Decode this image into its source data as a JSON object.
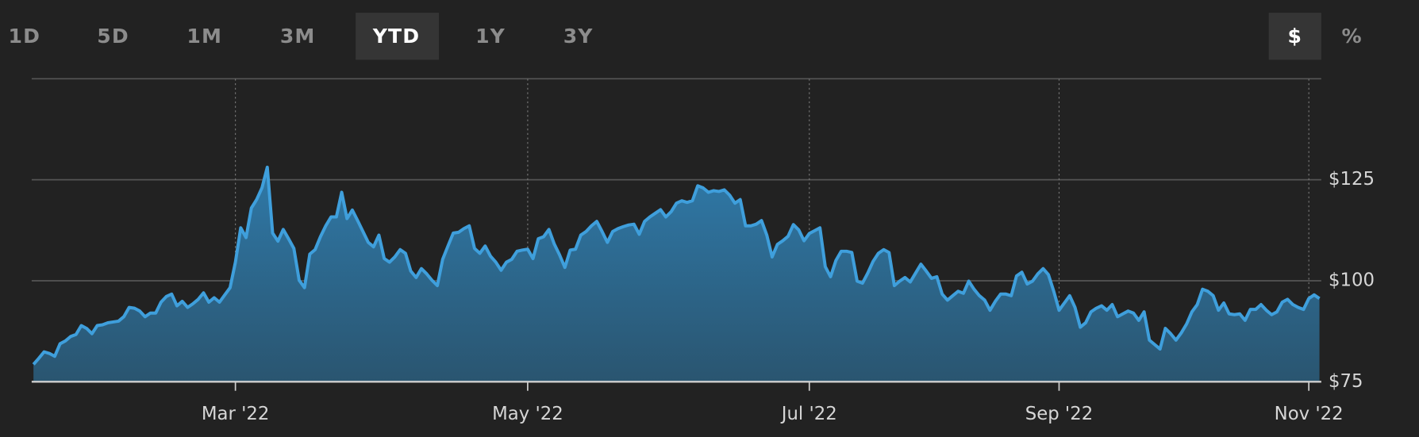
{
  "controls": {
    "ranges": [
      "1D",
      "5D",
      "1M",
      "3M",
      "YTD",
      "1Y",
      "3Y"
    ],
    "units": [
      "$",
      "%"
    ]
  },
  "chart_data": {
    "type": "area",
    "color": "#3f9fdc",
    "values": [
      79.3,
      80.8,
      82.4,
      82,
      81.3,
      84.4,
      85.1,
      86.2,
      86.7,
      88.9,
      88.2,
      86.9,
      88.9,
      89.1,
      89.6,
      89.8,
      90,
      91.1,
      93.4,
      93.2,
      92.5,
      91.1,
      92,
      92,
      94.7,
      96.1,
      96.7,
      93.8,
      94.9,
      93.4,
      94.3,
      95.4,
      97,
      94.7,
      95.8,
      94.7,
      96.5,
      98.3,
      104.6,
      113.1,
      110.7,
      118,
      120.1,
      123,
      128.1,
      111.8,
      109.8,
      112.7,
      110.4,
      108,
      100.1,
      98.3,
      106.6,
      107.7,
      110.9,
      113.6,
      115.8,
      115.8,
      121.9,
      115.4,
      117.5,
      114.9,
      112.2,
      109.5,
      108.4,
      111.3,
      105.5,
      104.6,
      105.9,
      107.7,
      106.8,
      102.4,
      100.8,
      103,
      101.7,
      100.1,
      98.8,
      105.3,
      108.6,
      111.8,
      112,
      112.9,
      113.6,
      108,
      106.8,
      108.6,
      106.1,
      104.6,
      102.6,
      104.6,
      105.3,
      107.3,
      107.6,
      107.8,
      105.5,
      110.4,
      110.9,
      112.7,
      109.1,
      106.4,
      103.3,
      107.6,
      107.8,
      111.3,
      112.2,
      113.6,
      114.7,
      112.2,
      109.5,
      112.2,
      112.9,
      113.4,
      113.8,
      114,
      111.5,
      114.7,
      115.8,
      116.7,
      117.6,
      115.8,
      117.1,
      119.2,
      119.8,
      119.4,
      119.8,
      123.5,
      123,
      121.9,
      122.3,
      122.1,
      122.5,
      121.2,
      119.2,
      120.1,
      113.6,
      113.6,
      114,
      114.9,
      111.3,
      105.9,
      109,
      109.9,
      111,
      113.9,
      112.6,
      109.9,
      111.7,
      112.4,
      113.1,
      103.5,
      101,
      105,
      107.3,
      107.3,
      107,
      99.9,
      99.4,
      101.9,
      104.8,
      106.8,
      107.7,
      107,
      98.8,
      99.9,
      100.8,
      99.7,
      101.9,
      104.1,
      102.4,
      100.6,
      101,
      96.7,
      95.2,
      96.3,
      97.4,
      96.9,
      99.9,
      97.9,
      96.3,
      95.2,
      92.7,
      94.9,
      96.7,
      96.7,
      96.3,
      101.2,
      102.1,
      99.2,
      99.9,
      101.7,
      103,
      101.5,
      97.4,
      92.7,
      94.5,
      96.3,
      93.4,
      88.5,
      89.6,
      92.3,
      93.2,
      93.8,
      92.7,
      94.1,
      91.1,
      91.8,
      92.5,
      92,
      90.2,
      92.3,
      85.3,
      84.2,
      83.1,
      88.2,
      86.9,
      85.3,
      87.1,
      89.3,
      92.3,
      94.1,
      97.9,
      97.4,
      96.3,
      92.7,
      94.5,
      91.8,
      91.6,
      91.8,
      90.2,
      92.9,
      92.9,
      94.1,
      92.7,
      91.6,
      92.3,
      94.7,
      95.4,
      94.1,
      93.4,
      92.9,
      95.6,
      96.5,
      95.6
    ],
    "xlim": [
      0,
      242
    ],
    "xticks": [
      {
        "value": 38,
        "label": "Mar '22"
      },
      {
        "value": 93,
        "label": "May '22"
      },
      {
        "value": 146,
        "label": "Jul '22"
      },
      {
        "value": 193,
        "label": "Sep '22"
      },
      {
        "value": 240,
        "label": "Nov '22"
      }
    ],
    "ylim": [
      75,
      150
    ],
    "yticks": [
      {
        "value": 75,
        "label": "$75"
      },
      {
        "value": 100,
        "label": "$100"
      },
      {
        "value": 125,
        "label": "$125"
      }
    ],
    "grid": true
  }
}
